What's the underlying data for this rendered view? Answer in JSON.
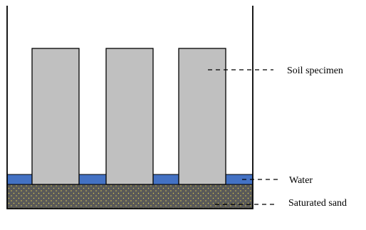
{
  "diagram": {
    "labels": {
      "soil_specimen": "Soil specimen",
      "water": "Water",
      "saturated_sand": "Saturated sand"
    },
    "specimen_count": 3,
    "colors": {
      "container_stroke": "#000000",
      "specimen_fill": "#c0c0c0",
      "water_fill": "#4472c4",
      "sand_fill": "#595959",
      "sand_dots": "#e8d44d",
      "leader_line": "#000000"
    }
  }
}
